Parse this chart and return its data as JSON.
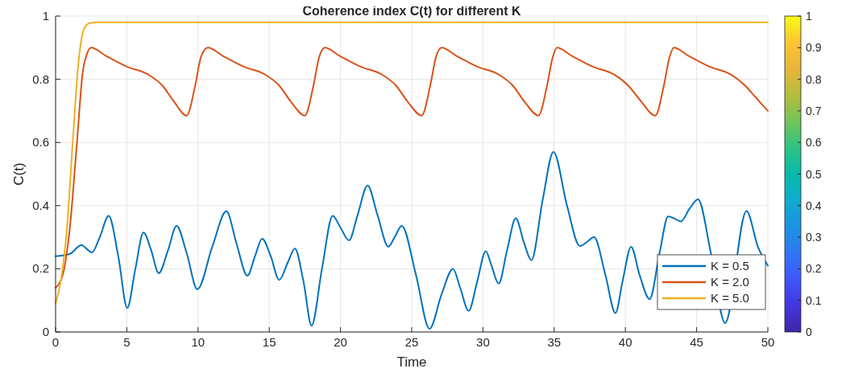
{
  "chart_data": {
    "type": "line",
    "title": "Coherence index C(t) for different K",
    "xlabel": "Time",
    "ylabel": "C(t)",
    "xlim": [
      0,
      50
    ],
    "xticks": [
      0,
      5,
      10,
      15,
      20,
      25,
      30,
      35,
      40,
      45,
      50
    ],
    "ylim": [
      0,
      1
    ],
    "yticks": [
      0,
      0.2,
      0.4,
      0.6,
      0.8,
      1
    ],
    "clim": [
      0,
      1
    ],
    "cticks": [
      0,
      0.1,
      0.2,
      0.3,
      0.4,
      0.5,
      0.6,
      0.7,
      0.8,
      0.9,
      1
    ],
    "grid": true,
    "legend": "bottom right",
    "line_style": "solid",
    "marker": "none",
    "series": [
      {
        "name": "K = 0.5",
        "color": "#0072bd",
        "x": [
          0,
          1.0,
          1.8,
          2.55,
          3.1,
          3.73,
          4.4,
          5.03,
          5.6,
          6.17,
          6.7,
          7.24,
          7.9,
          8.49,
          9.2,
          9.95,
          11.0,
          11.99,
          12.7,
          13.46,
          14.0,
          14.5,
          15.1,
          15.7,
          16.3,
          16.8,
          17.4,
          17.97,
          18.7,
          19.45,
          20.0,
          20.6,
          21.2,
          21.9,
          22.6,
          23.36,
          23.8,
          24.3,
          25.3,
          26.25,
          27.1,
          27.9,
          28.4,
          29.0,
          29.6,
          30.2,
          30.6,
          31.1,
          31.7,
          32.3,
          32.9,
          33.4,
          34.2,
          34.95,
          35.9,
          36.8,
          37.3,
          37.8,
          38.6,
          39.3,
          39.8,
          40.4,
          41.0,
          41.7,
          42.4,
          43.0,
          43.4,
          43.9,
          44.5,
          45.1,
          46.0,
          47.0,
          48.5,
          49.3,
          50
        ],
        "values": [
          0.24,
          0.247,
          0.275,
          0.252,
          0.3,
          0.368,
          0.24,
          0.076,
          0.2,
          0.315,
          0.26,
          0.186,
          0.26,
          0.336,
          0.25,
          0.135,
          0.27,
          0.382,
          0.28,
          0.178,
          0.24,
          0.295,
          0.24,
          0.165,
          0.22,
          0.264,
          0.16,
          0.02,
          0.2,
          0.368,
          0.33,
          0.29,
          0.37,
          0.464,
          0.37,
          0.27,
          0.3,
          0.336,
          0.18,
          0.01,
          0.12,
          0.2,
          0.14,
          0.067,
          0.16,
          0.256,
          0.21,
          0.153,
          0.26,
          0.36,
          0.28,
          0.227,
          0.42,
          0.57,
          0.4,
          0.272,
          0.285,
          0.3,
          0.18,
          0.06,
          0.16,
          0.27,
          0.18,
          0.104,
          0.25,
          0.366,
          0.36,
          0.35,
          0.39,
          0.42,
          0.25,
          0.028,
          0.383,
          0.27,
          0.21
        ]
      },
      {
        "name": "K = 2.0",
        "color": "#d95319",
        "x": [
          0,
          0.5,
          1.0,
          1.5,
          1.9,
          2.2,
          2.5,
          3.5,
          5.0,
          6.5,
          7.5,
          8.3,
          9.2,
          9.8,
          10.2,
          10.7,
          11.7,
          13.2,
          14.7,
          15.7,
          16.5,
          17.5,
          18.1,
          18.5,
          18.9,
          19.9,
          21.4,
          22.9,
          23.9,
          24.7,
          25.7,
          26.3,
          26.7,
          27.1,
          28.1,
          29.6,
          31.1,
          32.1,
          32.9,
          33.9,
          34.5,
          34.9,
          35.2,
          36.2,
          37.7,
          39.2,
          40.2,
          41.1,
          42.1,
          42.7,
          43.1,
          43.4,
          44.4,
          45.9,
          47.4,
          48.4,
          49.2,
          50
        ],
        "values": [
          0.14,
          0.18,
          0.33,
          0.6,
          0.82,
          0.88,
          0.9,
          0.875,
          0.84,
          0.815,
          0.78,
          0.73,
          0.685,
          0.78,
          0.87,
          0.9,
          0.875,
          0.84,
          0.815,
          0.78,
          0.73,
          0.685,
          0.78,
          0.87,
          0.9,
          0.875,
          0.84,
          0.815,
          0.78,
          0.73,
          0.685,
          0.78,
          0.87,
          0.9,
          0.875,
          0.84,
          0.815,
          0.78,
          0.73,
          0.685,
          0.78,
          0.87,
          0.9,
          0.875,
          0.84,
          0.815,
          0.78,
          0.73,
          0.685,
          0.78,
          0.87,
          0.9,
          0.875,
          0.84,
          0.815,
          0.78,
          0.74,
          0.7
        ]
      },
      {
        "name": "K = 5.0",
        "color": "#edb120",
        "x": [
          0,
          0.4,
          0.8,
          1.2,
          1.6,
          2.0,
          2.4,
          3.0,
          10,
          20,
          30,
          40,
          50
        ],
        "values": [
          0.09,
          0.17,
          0.33,
          0.6,
          0.85,
          0.96,
          0.978,
          0.98,
          0.98,
          0.98,
          0.98,
          0.98,
          0.98
        ]
      }
    ]
  }
}
